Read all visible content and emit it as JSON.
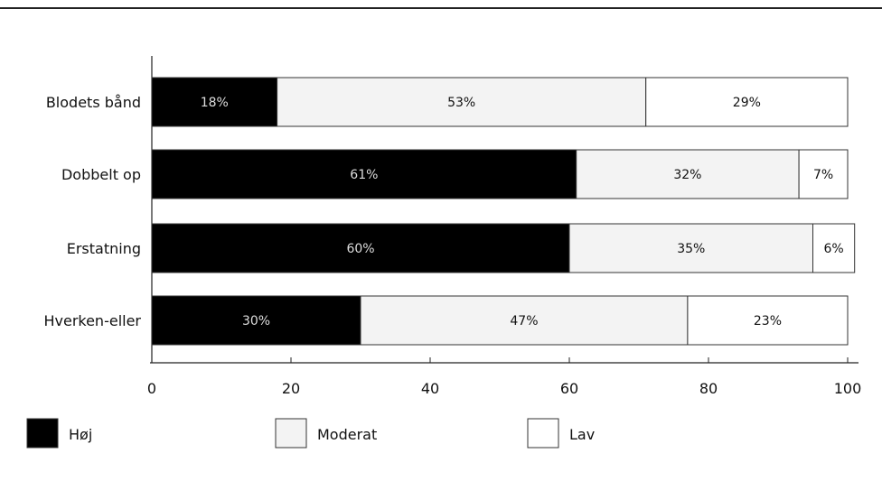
{
  "chart_data": {
    "type": "bar",
    "orientation": "horizontal",
    "stacked": true,
    "categories": [
      "Blodets bånd",
      "Dobbelt op",
      "Erstatning",
      "Hverken-eller"
    ],
    "series": [
      {
        "name": "Høj",
        "values": [
          18,
          61,
          60,
          30
        ],
        "color": "#000000",
        "label_color": "#dddddd",
        "labels": [
          "18%",
          "61%",
          "60%",
          "30%"
        ]
      },
      {
        "name": "Moderat",
        "values": [
          53,
          32,
          35,
          47
        ],
        "color": "#f3f3f3",
        "label_color": "#111111",
        "labels": [
          "53%",
          "32%",
          "35%",
          "47%"
        ]
      },
      {
        "name": "Lav",
        "values": [
          29,
          7,
          6,
          23
        ],
        "color": "#ffffff",
        "label_color": "#111111",
        "labels": [
          "29%",
          "7%",
          "6%",
          "23%"
        ]
      }
    ],
    "xlim": [
      0,
      100
    ],
    "xticks": [
      "0",
      "20",
      "40",
      "60",
      "80",
      "100"
    ],
    "grid": false,
    "legend_position": "bottom",
    "title": "",
    "xlabel": "",
    "ylabel": ""
  }
}
